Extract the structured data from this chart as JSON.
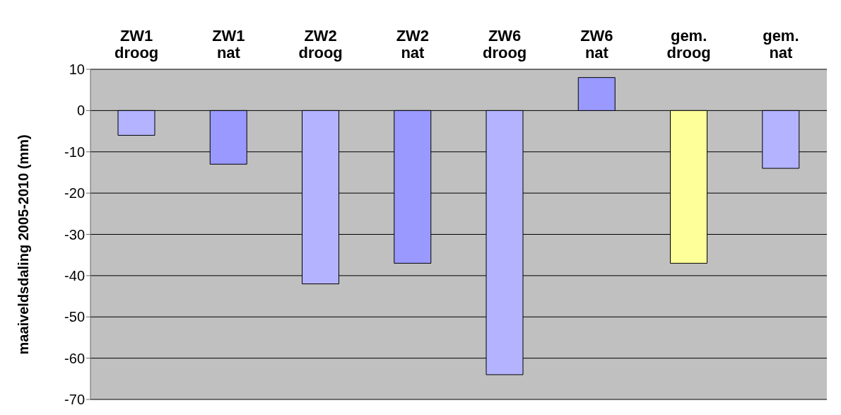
{
  "chart_data": {
    "type": "bar",
    "ylabel": "maaiveldsdaling 2005-2010 (mm)",
    "categories": [
      "ZW1\ndroog",
      "ZW1\nnat",
      "ZW2\ndroog",
      "ZW2\nnat",
      "ZW6\ndroog",
      "ZW6\nnat",
      "gem.\ndroog",
      "gem.\nnat"
    ],
    "values": [
      -6,
      -13,
      -42,
      -37,
      -64,
      8,
      -37,
      -14
    ],
    "colors": [
      "#b3b3ff",
      "#9999ff",
      "#b3b3ff",
      "#9999ff",
      "#b3b3ff",
      "#9999ff",
      "#ffff99",
      "#b3b3ff"
    ],
    "ylim": [
      -70,
      10
    ],
    "yticks": [
      -70,
      -60,
      -50,
      -40,
      -30,
      -20,
      -10,
      0,
      10
    ],
    "grid": "y",
    "legend": false
  }
}
